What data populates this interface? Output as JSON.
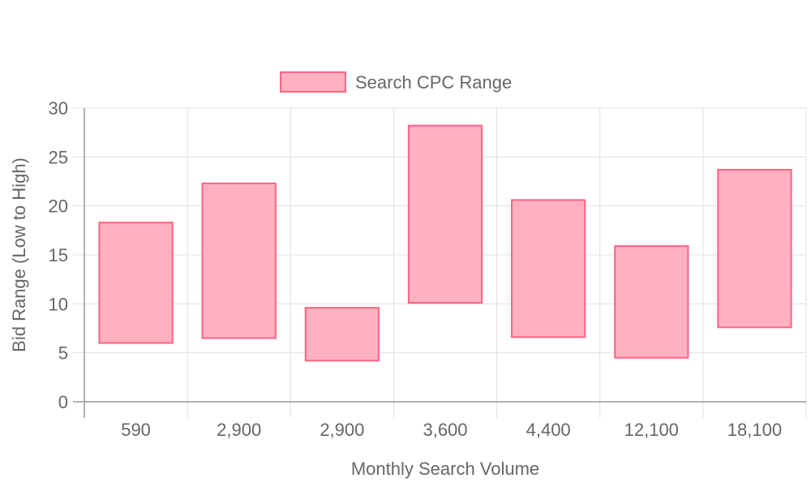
{
  "chart_data": {
    "type": "bar",
    "subtype": "floating-range",
    "categories": [
      "590",
      "2,900",
      "2,900",
      "3,600",
      "4,400",
      "12,100",
      "18,100"
    ],
    "series": [
      {
        "name": "Search CPC Range",
        "low": [
          6.0,
          6.5,
          4.2,
          10.1,
          6.6,
          4.5,
          7.6
        ],
        "high": [
          18.3,
          22.3,
          9.6,
          28.2,
          20.6,
          15.9,
          23.7
        ]
      }
    ],
    "xlabel": "Monthly Search Volume",
    "ylabel": "Bid Range (Low to High)",
    "ylim": [
      0,
      30
    ],
    "yticks": [
      "0",
      "5",
      "10",
      "15",
      "20",
      "25",
      "30"
    ],
    "grid": true,
    "legend": "top-center",
    "colors": {
      "bar_fill": "#ffb1c1",
      "bar_border": "#ff6384",
      "grid": "#e0e0e0",
      "axis": "#999999",
      "text": "#666666"
    }
  }
}
